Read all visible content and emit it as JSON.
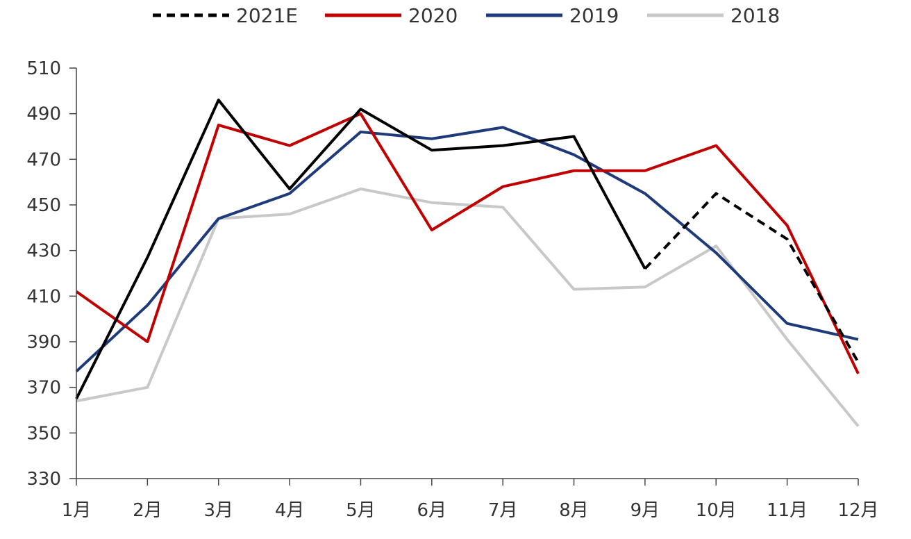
{
  "chart_data": {
    "type": "line",
    "title": "",
    "xlabel": "",
    "ylabel": "",
    "categories": [
      "1月",
      "2月",
      "3月",
      "4月",
      "5月",
      "6月",
      "7月",
      "8月",
      "9月",
      "10月",
      "11月",
      "12月"
    ],
    "ylim": [
      330,
      510
    ],
    "yticks": [
      330,
      350,
      370,
      390,
      410,
      430,
      450,
      470,
      490,
      510
    ],
    "grid": false,
    "legend": "top",
    "series": [
      {
        "name": "2021E",
        "color": "#000000",
        "values": [
          365,
          427,
          496,
          457,
          492,
          474,
          476,
          480,
          422,
          455,
          435,
          381
        ],
        "dashed_from_index": 8
      },
      {
        "name": "2020",
        "color": "#c00000",
        "values": [
          412,
          390,
          485,
          476,
          490,
          439,
          458,
          465,
          465,
          476,
          441,
          376
        ]
      },
      {
        "name": "2019",
        "color": "#1f3a7a",
        "values": [
          377,
          406,
          444,
          455,
          482,
          479,
          484,
          472,
          455,
          429,
          398,
          391
        ]
      },
      {
        "name": "2018",
        "color": "#c8c8c8",
        "values": [
          364,
          370,
          444,
          446,
          457,
          451,
          449,
          413,
          414,
          432,
          391,
          353
        ]
      }
    ]
  }
}
